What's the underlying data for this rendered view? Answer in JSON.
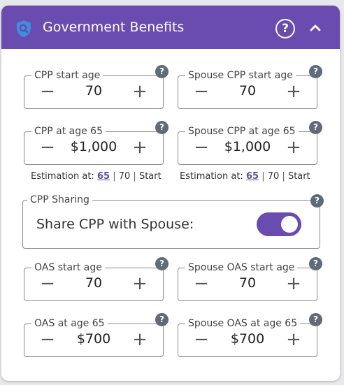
{
  "header": {
    "title": "Government Benefits",
    "help_icon": "?",
    "icons": [
      "shield-search-icon",
      "help-circle-icon",
      "chevron-up-icon"
    ]
  },
  "controls": {
    "minus": "−",
    "plus": "+",
    "help": "?"
  },
  "cpp": {
    "start_age": {
      "label": "CPP start age",
      "value": "70"
    },
    "spouse_start_age": {
      "label": "Spouse CPP start age",
      "value": "70"
    },
    "at_65": {
      "label": "CPP at age 65",
      "value": "$1,000"
    },
    "spouse_at_65": {
      "label": "Spouse CPP at age 65",
      "value": "$1,000"
    },
    "estimation": {
      "prefix": "Estimation at:",
      "opt_65": "65",
      "sep": "|",
      "opt_70": "70",
      "opt_start": "Start"
    }
  },
  "sharing": {
    "legend": "CPP Sharing",
    "label": "Share CPP with Spouse:",
    "enabled": true
  },
  "oas": {
    "start_age": {
      "label": "OAS start age",
      "value": "70"
    },
    "spouse_start_age": {
      "label": "Spouse OAS start age",
      "value": "70"
    },
    "at_65": {
      "label": "OAS at age 65",
      "value": "$700"
    },
    "spouse_at_65": {
      "label": "Spouse OAS at age 65",
      "value": "$700"
    }
  },
  "colors": {
    "accent": "#6a4bb0",
    "help_badge": "#5f6a7a",
    "shield": "#3d8fe0"
  }
}
